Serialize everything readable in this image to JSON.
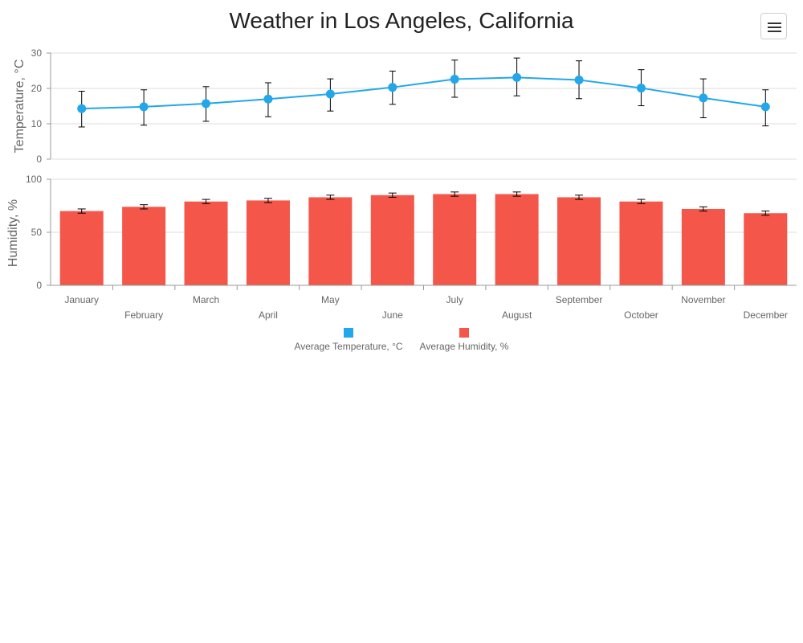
{
  "title": "Weather in Los Angeles, California",
  "menu_icon": "hamburger-menu-icon",
  "colors": {
    "temperature": "#22a7ea",
    "humidity": "#f4564a",
    "grid": "#dddddd",
    "axis": "#999999",
    "error": "#000000"
  },
  "legend": [
    {
      "label": "Average Temperature, °C",
      "color": "#22a7ea"
    },
    {
      "label": "Average Humidity, %",
      "color": "#f4564a"
    }
  ],
  "chart_data": [
    {
      "type": "line",
      "categories": [
        "January",
        "February",
        "March",
        "April",
        "May",
        "June",
        "July",
        "August",
        "September",
        "October",
        "November",
        "December"
      ],
      "series": [
        {
          "name": "Average Temperature, °C",
          "values": [
            14.3,
            14.8,
            15.7,
            17.0,
            18.4,
            20.3,
            22.6,
            23.1,
            22.4,
            20.1,
            17.3,
            14.8
          ],
          "error_low": [
            9.1,
            9.6,
            10.7,
            12.0,
            13.6,
            15.5,
            17.5,
            17.9,
            17.1,
            15.1,
            11.7,
            9.4
          ],
          "error_high": [
            19.2,
            19.6,
            20.5,
            21.6,
            22.7,
            24.9,
            28.0,
            28.6,
            27.8,
            25.3,
            22.7,
            19.6
          ]
        }
      ],
      "ylabel": "Temperature, °C",
      "ylim": [
        0,
        30
      ],
      "yticks": [
        0,
        10,
        20,
        30
      ],
      "grid": true
    },
    {
      "type": "bar",
      "categories": [
        "January",
        "February",
        "March",
        "April",
        "May",
        "June",
        "July",
        "August",
        "September",
        "October",
        "November",
        "December"
      ],
      "series": [
        {
          "name": "Average Humidity, %",
          "values": [
            70,
            74,
            79,
            80,
            83,
            85,
            86,
            86,
            83,
            79,
            72,
            68
          ],
          "error_low": [
            68,
            72,
            77,
            78,
            81,
            83,
            84,
            84,
            81,
            77,
            70,
            66
          ],
          "error_high": [
            72,
            76,
            81,
            82,
            85,
            87,
            88,
            88,
            85,
            81,
            74,
            70
          ]
        }
      ],
      "ylabel": "Humidity, %",
      "ylim": [
        0,
        100
      ],
      "yticks": [
        0,
        50,
        100
      ],
      "grid": true
    }
  ]
}
